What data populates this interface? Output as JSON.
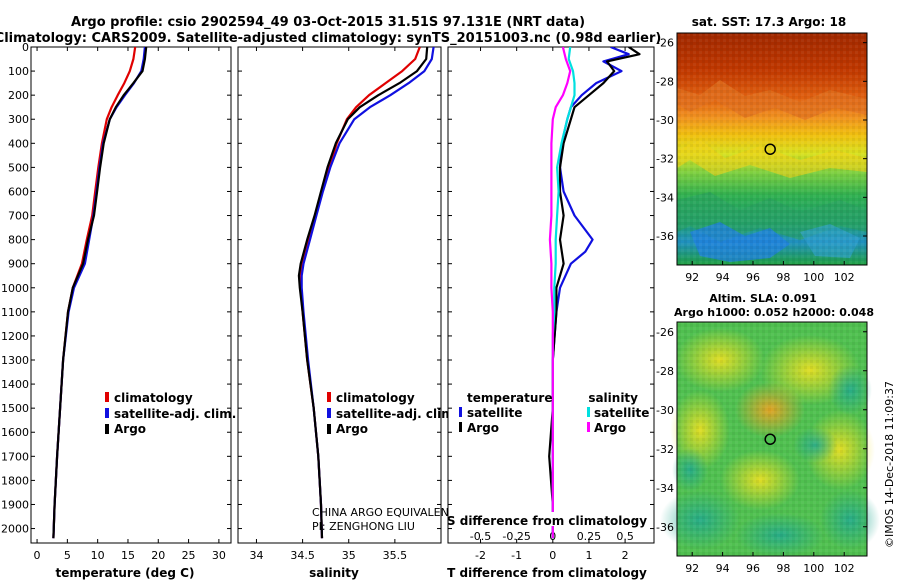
{
  "title_line1": "Argo profile: csio 2902594_49 03-Oct-2015 31.51S 97.131E (NRT data)",
  "title_line2": "Climatology: CARS2009. Satellite-adjusted climatology: synTS_20151003.nc (0.98d earlier)",
  "credit_line1": "CHINA ARGO EQUIVALENT",
  "credit_line2": "PI: ZENGHONG LIU",
  "timestamp": "©IMOS 14-Dec-2018 11:09:37",
  "colors": {
    "climatology": "#e00000",
    "satellite": "#1010e0",
    "argo": "#000000",
    "sat_salinity": "#00e0e0",
    "argo_salinity": "#ff00ff"
  },
  "chart_data": [
    {
      "type": "line",
      "id": "temperature",
      "xlabel": "temperature (deg C)",
      "ylabel": "",
      "xlim": [
        -1,
        32
      ],
      "ylim": [
        2060,
        0
      ],
      "xticks": [
        0,
        5,
        10,
        15,
        20,
        25,
        30
      ],
      "yticks": [
        0,
        100,
        200,
        300,
        400,
        500,
        600,
        700,
        800,
        900,
        1000,
        1100,
        1200,
        1300,
        1400,
        1500,
        1600,
        1700,
        1800,
        1900,
        2000
      ],
      "legend": {
        "position": "lower-right",
        "entries": [
          "climatology",
          "satellite-adj. clim.",
          "Argo"
        ]
      },
      "series": [
        {
          "name": "climatology",
          "color_key": "climatology",
          "depth": [
            0,
            50,
            100,
            150,
            200,
            250,
            300,
            400,
            500,
            600,
            700,
            800,
            900,
            1000,
            1100,
            1300,
            1500,
            1700,
            1900,
            2040
          ],
          "values": [
            16.2,
            15.9,
            15.3,
            14.4,
            13.3,
            12.3,
            11.5,
            10.7,
            10.1,
            9.6,
            9.1,
            8.2,
            7.4,
            5.9,
            5.1,
            4.3,
            3.8,
            3.3,
            2.9,
            2.7
          ]
        },
        {
          "name": "satellite-adj. clim.",
          "color_key": "satellite",
          "depth": [
            0,
            50,
            100,
            150,
            200,
            250,
            300,
            400,
            500,
            600,
            700,
            800,
            900,
            1000,
            1100,
            1300,
            1500,
            1700,
            1900,
            2040
          ],
          "values": [
            17.8,
            17.6,
            17.2,
            16.0,
            14.5,
            13.1,
            12.0,
            10.9,
            10.3,
            9.8,
            9.3,
            8.6,
            7.9,
            6.1,
            5.2,
            4.3,
            3.8,
            3.3,
            2.9,
            2.7
          ]
        },
        {
          "name": "Argo",
          "color_key": "argo",
          "depth": [
            0,
            50,
            100,
            150,
            200,
            250,
            300,
            400,
            500,
            600,
            700,
            800,
            900,
            1000,
            1100,
            1300,
            1500,
            1700,
            1900,
            2040
          ],
          "values": [
            18.0,
            17.8,
            17.4,
            15.9,
            14.3,
            13.0,
            12.0,
            11.0,
            10.4,
            9.9,
            9.4,
            8.4,
            7.6,
            5.9,
            5.1,
            4.3,
            3.8,
            3.3,
            2.9,
            2.7
          ]
        }
      ]
    },
    {
      "type": "line",
      "id": "salinity",
      "xlabel": "salinity",
      "ylabel": "",
      "xlim": [
        33.8,
        36.0
      ],
      "ylim": [
        2060,
        0
      ],
      "xticks": [
        34,
        34.5,
        35,
        35.5
      ],
      "legend": {
        "position": "lower-right",
        "entries": [
          "climatology",
          "satellite-adj. clim.",
          "Argo"
        ]
      },
      "series": [
        {
          "name": "climatology",
          "color_key": "climatology",
          "depth": [
            0,
            50,
            100,
            150,
            200,
            250,
            300,
            400,
            500,
            600,
            700,
            800,
            900,
            950,
            1000,
            1100,
            1300,
            1500,
            1700,
            1900,
            2040
          ],
          "values": [
            35.77,
            35.72,
            35.58,
            35.4,
            35.22,
            35.08,
            34.98,
            34.87,
            34.79,
            34.71,
            34.64,
            34.57,
            34.5,
            34.48,
            34.48,
            34.5,
            34.55,
            34.62,
            34.67,
            34.7,
            34.71
          ]
        },
        {
          "name": "satellite-adj. clim.",
          "color_key": "satellite",
          "depth": [
            0,
            50,
            100,
            150,
            200,
            250,
            300,
            400,
            500,
            600,
            700,
            800,
            900,
            950,
            1000,
            1100,
            1300,
            1500,
            1700,
            1900,
            2040
          ],
          "values": [
            35.92,
            35.9,
            35.82,
            35.65,
            35.45,
            35.23,
            35.06,
            34.9,
            34.8,
            34.72,
            34.65,
            34.58,
            34.51,
            34.49,
            34.49,
            34.51,
            34.56,
            34.62,
            34.67,
            34.7,
            34.71
          ]
        },
        {
          "name": "Argo",
          "color_key": "argo",
          "depth": [
            0,
            50,
            100,
            150,
            200,
            250,
            300,
            400,
            500,
            600,
            700,
            800,
            900,
            950,
            1000,
            1100,
            1300,
            1500,
            1700,
            1900,
            2040
          ],
          "values": [
            35.85,
            35.84,
            35.74,
            35.55,
            35.32,
            35.12,
            34.99,
            34.86,
            34.77,
            34.7,
            34.63,
            34.55,
            34.48,
            34.46,
            34.47,
            34.5,
            34.55,
            34.62,
            34.67,
            34.7,
            34.71
          ]
        }
      ]
    },
    {
      "type": "line",
      "id": "difference",
      "xlabel": "T difference from climatology",
      "top_xlabel": "S difference from climatology",
      "xlim": [
        -2.9,
        2.8
      ],
      "ylim": [
        2060,
        0
      ],
      "xticks": [
        -2,
        -1,
        0,
        1,
        2
      ],
      "top_xlim": [
        -0.725,
        0.7
      ],
      "top_xticks": [
        -0.5,
        -0.25,
        0,
        0.25,
        0.5
      ],
      "top_xticklabels": [
        "-0.5",
        "-0.25",
        "0",
        "0.25",
        "0.5"
      ],
      "legend_temperature": {
        "title": "temperature",
        "entries": [
          "satellite",
          "Argo"
        ]
      },
      "legend_salinity": {
        "title": "salinity",
        "entries": [
          "satellite",
          "Argo"
        ]
      },
      "series": [
        {
          "name": "T satellite",
          "color_key": "satellite",
          "depth": [
            0,
            30,
            60,
            100,
            150,
            200,
            250,
            300,
            400,
            500,
            600,
            700,
            800,
            850,
            900,
            1000,
            1100,
            1300,
            1500,
            1700,
            1900,
            2040
          ],
          "values": [
            1.6,
            2.1,
            1.4,
            1.9,
            1.2,
            0.8,
            0.5,
            0.4,
            0.25,
            0.2,
            0.3,
            0.6,
            1.1,
            0.9,
            0.5,
            0.2,
            0.1,
            0.0,
            0.0,
            0.0,
            0.0,
            0.0
          ]
        },
        {
          "name": "T Argo",
          "color_key": "argo",
          "depth": [
            0,
            30,
            60,
            100,
            150,
            200,
            250,
            300,
            400,
            500,
            600,
            700,
            800,
            900,
            1000,
            1100,
            1300,
            1500,
            1700,
            1900,
            2040
          ],
          "values": [
            2.1,
            2.4,
            1.5,
            1.7,
            1.4,
            1.0,
            0.6,
            0.5,
            0.3,
            0.2,
            0.2,
            0.3,
            0.2,
            0.3,
            0.1,
            0.1,
            0.0,
            0.0,
            -0.1,
            0.0,
            0.0
          ]
        },
        {
          "name": "S satellite",
          "color_key": "sat_salinity",
          "depth": [
            0,
            50,
            100,
            150,
            200,
            300,
            400,
            500,
            600,
            700,
            800,
            900,
            1000,
            1100,
            1200,
            1300,
            1500,
            1700,
            1900,
            2040
          ],
          "values": [
            0.12,
            0.11,
            0.14,
            0.15,
            0.15,
            0.1,
            0.06,
            0.03,
            0.04,
            0.03,
            0.02,
            0.02,
            0.01,
            0.01,
            0.0,
            0.0,
            0.0,
            0.0,
            0.0,
            0.0
          ]
        },
        {
          "name": "S Argo",
          "color_key": "argo_salinity",
          "depth": [
            0,
            50,
            100,
            150,
            200,
            250,
            300,
            400,
            500,
            600,
            700,
            800,
            900,
            1000,
            1100,
            1300,
            1500,
            1700,
            1900,
            2040
          ],
          "values": [
            0.07,
            0.09,
            0.12,
            0.1,
            0.07,
            0.02,
            0.0,
            -0.01,
            -0.01,
            -0.01,
            -0.01,
            -0.02,
            -0.01,
            -0.01,
            0.0,
            0.0,
            0.0,
            0.0,
            0.0,
            0.0
          ]
        }
      ]
    },
    {
      "type": "heatmap",
      "id": "sst_map",
      "title": "sat. SST: 17.3 Argo: 18",
      "xlim": [
        91,
        103.5
      ],
      "ylim": [
        -37.5,
        -25.5
      ],
      "xticks": [
        92,
        94,
        96,
        98,
        100,
        102
      ],
      "yticks": [
        -26,
        -28,
        -30,
        -32,
        -34,
        -36
      ],
      "marker": {
        "lon": 97.131,
        "lat": -31.51
      }
    },
    {
      "type": "heatmap",
      "id": "sla_map",
      "title": "Altim. SLA: 0.091",
      "subtitle": "Argo h1000: 0.052 h2000: 0.048",
      "xlim": [
        91,
        103.5
      ],
      "ylim": [
        -37.5,
        -25.5
      ],
      "xticks": [
        92,
        94,
        96,
        98,
        100,
        102
      ],
      "yticks": [
        -26,
        -28,
        -30,
        -32,
        -34,
        -36
      ],
      "marker": {
        "lon": 97.131,
        "lat": -31.51
      }
    }
  ]
}
